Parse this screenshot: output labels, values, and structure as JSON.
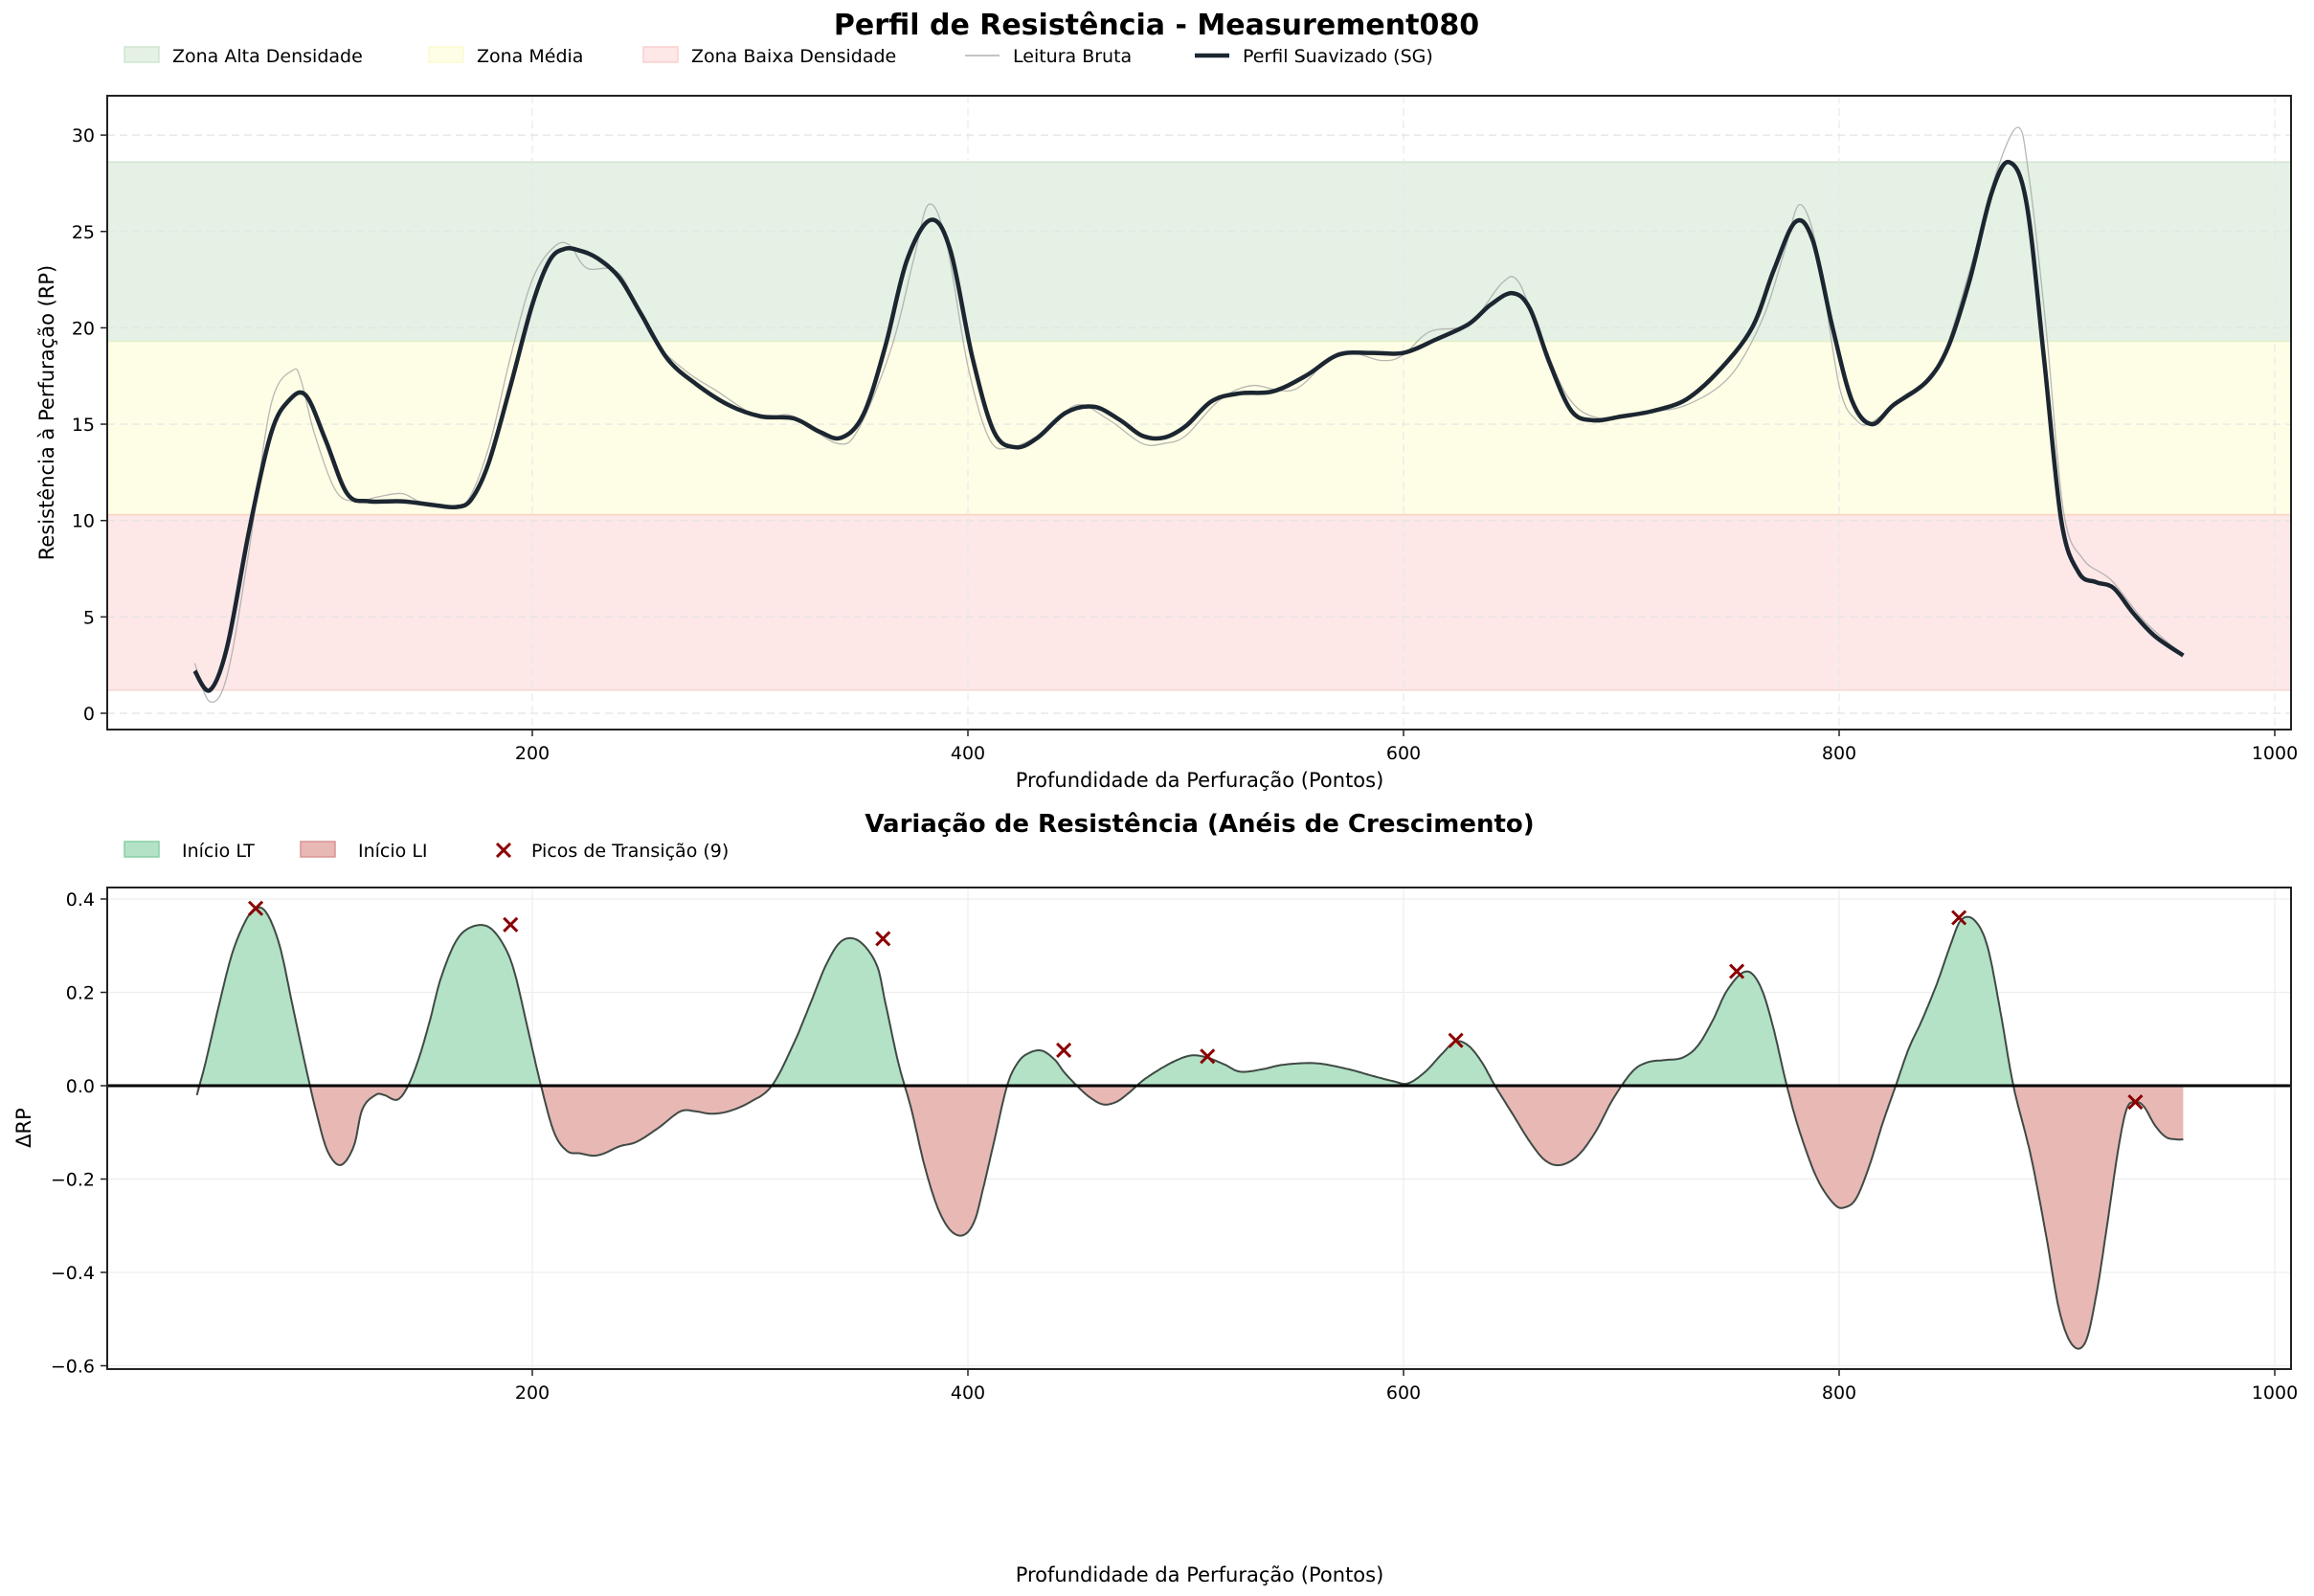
{
  "chart_data": [
    {
      "type": "line",
      "title": "Perfil de Resistência - Measurement080",
      "xlabel": "Profundidade da Perfuração (Pontos)",
      "ylabel": "Resistência à Perfuração (RP)",
      "xlim": [
        6,
        1004
      ],
      "ylim": [
        -0.8,
        32
      ],
      "xticks": [
        200,
        400,
        600,
        800,
        1000
      ],
      "yticks": [
        0,
        5,
        10,
        15,
        20,
        25,
        30
      ],
      "grid": true,
      "legend_position": "top-left",
      "zones": [
        {
          "name": "Zona Alta Densidade",
          "y0": 19.3,
          "y1": 28.6,
          "color": "#e4f1e4"
        },
        {
          "name": "Zona Média",
          "y0": 10.3,
          "y1": 19.3,
          "color": "#fefee6"
        },
        {
          "name": "Zona Baixa Densidade",
          "y0": 1.2,
          "y1": 10.3,
          "color": "#fde7e7"
        }
      ],
      "legend": [
        {
          "label": "Zona Alta Densidade",
          "kind": "patch",
          "color": "#e4f1e4",
          "edge": "#cfe6cf"
        },
        {
          "label": "Zona Média",
          "kind": "patch",
          "color": "#fefee6",
          "edge": "#fafad0"
        },
        {
          "label": "Zona Baixa Densidade",
          "kind": "patch",
          "color": "#fde7e7",
          "edge": "#f8d0d0"
        },
        {
          "label": "Leitura Bruta",
          "kind": "line",
          "color": "#b0b0b0"
        },
        {
          "label": "Perfil Suavizado (SG)",
          "kind": "line",
          "color": "#1b2631"
        }
      ],
      "series": [
        {
          "name": "Leitura Bruta",
          "color": "#aaaaaa",
          "x": [
            45,
            52,
            60,
            70,
            80,
            90,
            94,
            100,
            110,
            120,
            128,
            140,
            148,
            160,
            170,
            180,
            190,
            200,
            210,
            217,
            225,
            240,
            255,
            270,
            285,
            300,
            310,
            320,
            340,
            350,
            365,
            375,
            382,
            390,
            400,
            410,
            420,
            435,
            450,
            465,
            480,
            490,
            500,
            515,
            530,
            550,
            570,
            590,
            600,
            612,
            630,
            645,
            652,
            660,
            675,
            690,
            710,
            730,
            750,
            765,
            775,
            782,
            790,
            800,
            808,
            815,
            830,
            845,
            860,
            872,
            882,
            887,
            895,
            903,
            912,
            925,
            940,
            958
          ],
          "values": [
            2.6,
            0.6,
            2.0,
            8.5,
            16.0,
            17.8,
            17.2,
            14.5,
            11.5,
            11.0,
            11.2,
            11.4,
            11.0,
            10.7,
            11.0,
            13.8,
            18.5,
            22.5,
            24.2,
            24.3,
            23.1,
            22.8,
            19.5,
            17.8,
            16.7,
            15.6,
            15.4,
            15.4,
            14.0,
            14.8,
            19.0,
            23.5,
            26.4,
            24.5,
            18.0,
            14.2,
            13.8,
            14.6,
            16.0,
            15.2,
            14.0,
            14.0,
            14.4,
            16.2,
            17.0,
            16.8,
            18.7,
            18.3,
            18.6,
            19.8,
            20.2,
            22.3,
            22.5,
            20.5,
            16.5,
            15.3,
            15.6,
            16.0,
            17.5,
            20.5,
            24.0,
            26.4,
            24.0,
            17.0,
            15.2,
            15.1,
            16.5,
            17.8,
            23.0,
            28.0,
            30.4,
            28.0,
            20.0,
            10.5,
            8.0,
            6.9,
            4.8,
            3.0
          ]
        },
        {
          "name": "Perfil Suavizado (SG)",
          "color": "#1b2631",
          "x": [
            45,
            52,
            60,
            70,
            80,
            88,
            96,
            105,
            115,
            125,
            140,
            155,
            165,
            172,
            180,
            190,
            200,
            208,
            215,
            222,
            230,
            240,
            250,
            262,
            275,
            290,
            305,
            320,
            332,
            342,
            352,
            362,
            372,
            383,
            392,
            402,
            412,
            422,
            432,
            445,
            458,
            470,
            480,
            490,
            500,
            512,
            525,
            540,
            555,
            570,
            585,
            600,
            615,
            630,
            640,
            650,
            658,
            667,
            677,
            687,
            700,
            715,
            730,
            745,
            760,
            770,
            780,
            788,
            797,
            806,
            815,
            825,
            840,
            850,
            860,
            870,
            878,
            886,
            894,
            902,
            910,
            918,
            926,
            935,
            945,
            958
          ],
          "values": [
            2.2,
            1.2,
            3.5,
            9.5,
            14.5,
            16.2,
            16.5,
            14.2,
            11.4,
            11.0,
            11.0,
            10.8,
            10.7,
            11.1,
            13.0,
            17.0,
            21.2,
            23.5,
            24.1,
            24.0,
            23.6,
            22.6,
            20.7,
            18.4,
            17.1,
            16.0,
            15.4,
            15.3,
            14.6,
            14.3,
            15.5,
            19.0,
            23.5,
            25.6,
            24.0,
            18.5,
            14.6,
            13.8,
            14.3,
            15.6,
            15.9,
            15.2,
            14.4,
            14.3,
            14.9,
            16.2,
            16.6,
            16.7,
            17.5,
            18.6,
            18.7,
            18.7,
            19.4,
            20.2,
            21.2,
            21.8,
            21.0,
            18.2,
            15.7,
            15.2,
            15.4,
            15.7,
            16.3,
            17.8,
            20.0,
            23.0,
            25.5,
            24.5,
            20.0,
            16.2,
            15.0,
            16.0,
            17.2,
            19.0,
            22.5,
            27.0,
            28.6,
            26.5,
            18.5,
            10.0,
            7.3,
            6.8,
            6.5,
            5.2,
            4.0,
            3.0
          ]
        }
      ]
    },
    {
      "type": "area",
      "title": "Variação de Resistência (Anéis de Crescimento)",
      "xlabel": "Profundidade da Perfuração (Pontos)",
      "ylabel": "ΔRP",
      "xlim": [
        6,
        1004
      ],
      "ylim": [
        -0.61,
        0.43
      ],
      "xticks": [
        200,
        400,
        600,
        800,
        1000
      ],
      "yticks": [
        -0.6,
        -0.4,
        -0.2,
        0.0,
        0.2,
        0.4
      ],
      "ytick_labels": [
        "−0.6",
        "−0.4",
        "−0.2",
        "0.0",
        "0.2",
        "0.4"
      ],
      "grid": true,
      "legend_position": "top-left",
      "legend": [
        {
          "label": "Início LT",
          "kind": "patch",
          "color": "#b3e2c7",
          "edge": "#86cfa4"
        },
        {
          "label": "Início LI",
          "kind": "patch",
          "color": "#e8b8b5",
          "edge": "#d99490"
        },
        {
          "label": "Picos de Transição (9)",
          "kind": "marker",
          "color": "#8b0000"
        }
      ],
      "positive_color": "#b3e2c7",
      "negative_color": "#e8b8b5",
      "series": [
        {
          "name": "ΔRP",
          "x": [
            46,
            50,
            56,
            62,
            68,
            73,
            78,
            84,
            90,
            96,
            101,
            106,
            112,
            118,
            122,
            128,
            132,
            138,
            143,
            148,
            153,
            158,
            165,
            172,
            180,
            187,
            192,
            198,
            204,
            210,
            216,
            222,
            228,
            233,
            240,
            248,
            258,
            268,
            275,
            282,
            290,
            300,
            310,
            320,
            328,
            335,
            342,
            350,
            358,
            362,
            368,
            374,
            380,
            386,
            392,
            398,
            403,
            407,
            412,
            418,
            423,
            428,
            434,
            440,
            444,
            450,
            456,
            462,
            468,
            474,
            480,
            488,
            496,
            503,
            510,
            518,
            525,
            535,
            545,
            560,
            575,
            585,
            595,
            602,
            610,
            618,
            624,
            630,
            636,
            642,
            650,
            658,
            665,
            672,
            680,
            688,
            696,
            705,
            712,
            720,
            728,
            735,
            742,
            748,
            755,
            760,
            765,
            770,
            776,
            782,
            790,
            798,
            803,
            808,
            814,
            820,
            826,
            832,
            838,
            845,
            851,
            856,
            862,
            868,
            874,
            880,
            888,
            895,
            901,
            907,
            913,
            918,
            923,
            928,
            932,
            936,
            940,
            945,
            950,
            955,
            958
          ],
          "values": [
            -0.02,
            0.05,
            0.17,
            0.28,
            0.35,
            0.38,
            0.37,
            0.3,
            0.17,
            0.04,
            -0.06,
            -0.14,
            -0.17,
            -0.13,
            -0.05,
            -0.02,
            -0.02,
            -0.03,
            0.0,
            0.06,
            0.14,
            0.23,
            0.31,
            0.34,
            0.34,
            0.3,
            0.24,
            0.12,
            0.0,
            -0.1,
            -0.14,
            -0.145,
            -0.15,
            -0.145,
            -0.13,
            -0.12,
            -0.09,
            -0.055,
            -0.055,
            -0.06,
            -0.055,
            -0.035,
            0.0,
            0.09,
            0.18,
            0.26,
            0.31,
            0.31,
            0.26,
            0.18,
            0.05,
            -0.05,
            -0.17,
            -0.26,
            -0.31,
            -0.32,
            -0.29,
            -0.22,
            -0.12,
            0.0,
            0.05,
            0.07,
            0.075,
            0.055,
            0.03,
            0.0,
            -0.025,
            -0.04,
            -0.035,
            -0.015,
            0.01,
            0.035,
            0.055,
            0.065,
            0.06,
            0.045,
            0.03,
            0.035,
            0.045,
            0.048,
            0.035,
            0.022,
            0.01,
            0.005,
            0.03,
            0.07,
            0.095,
            0.085,
            0.05,
            0.0,
            -0.06,
            -0.12,
            -0.16,
            -0.17,
            -0.15,
            -0.1,
            -0.03,
            0.03,
            0.05,
            0.055,
            0.06,
            0.085,
            0.14,
            0.2,
            0.24,
            0.24,
            0.2,
            0.12,
            0.0,
            -0.1,
            -0.2,
            -0.255,
            -0.26,
            -0.24,
            -0.17,
            -0.08,
            0.0,
            0.08,
            0.14,
            0.22,
            0.3,
            0.355,
            0.355,
            0.3,
            0.16,
            0.0,
            -0.15,
            -0.32,
            -0.48,
            -0.555,
            -0.55,
            -0.45,
            -0.3,
            -0.14,
            -0.05,
            -0.035,
            -0.045,
            -0.085,
            -0.11,
            -0.115,
            -0.115
          ]
        }
      ],
      "peaks": {
        "label": "Picos de Transição (9)",
        "x": [
          73,
          190,
          361,
          444,
          510,
          624,
          753,
          855,
          936
        ],
        "values": [
          0.38,
          0.345,
          0.315,
          0.076,
          0.063,
          0.097,
          0.245,
          0.36,
          -0.035
        ]
      }
    }
  ]
}
